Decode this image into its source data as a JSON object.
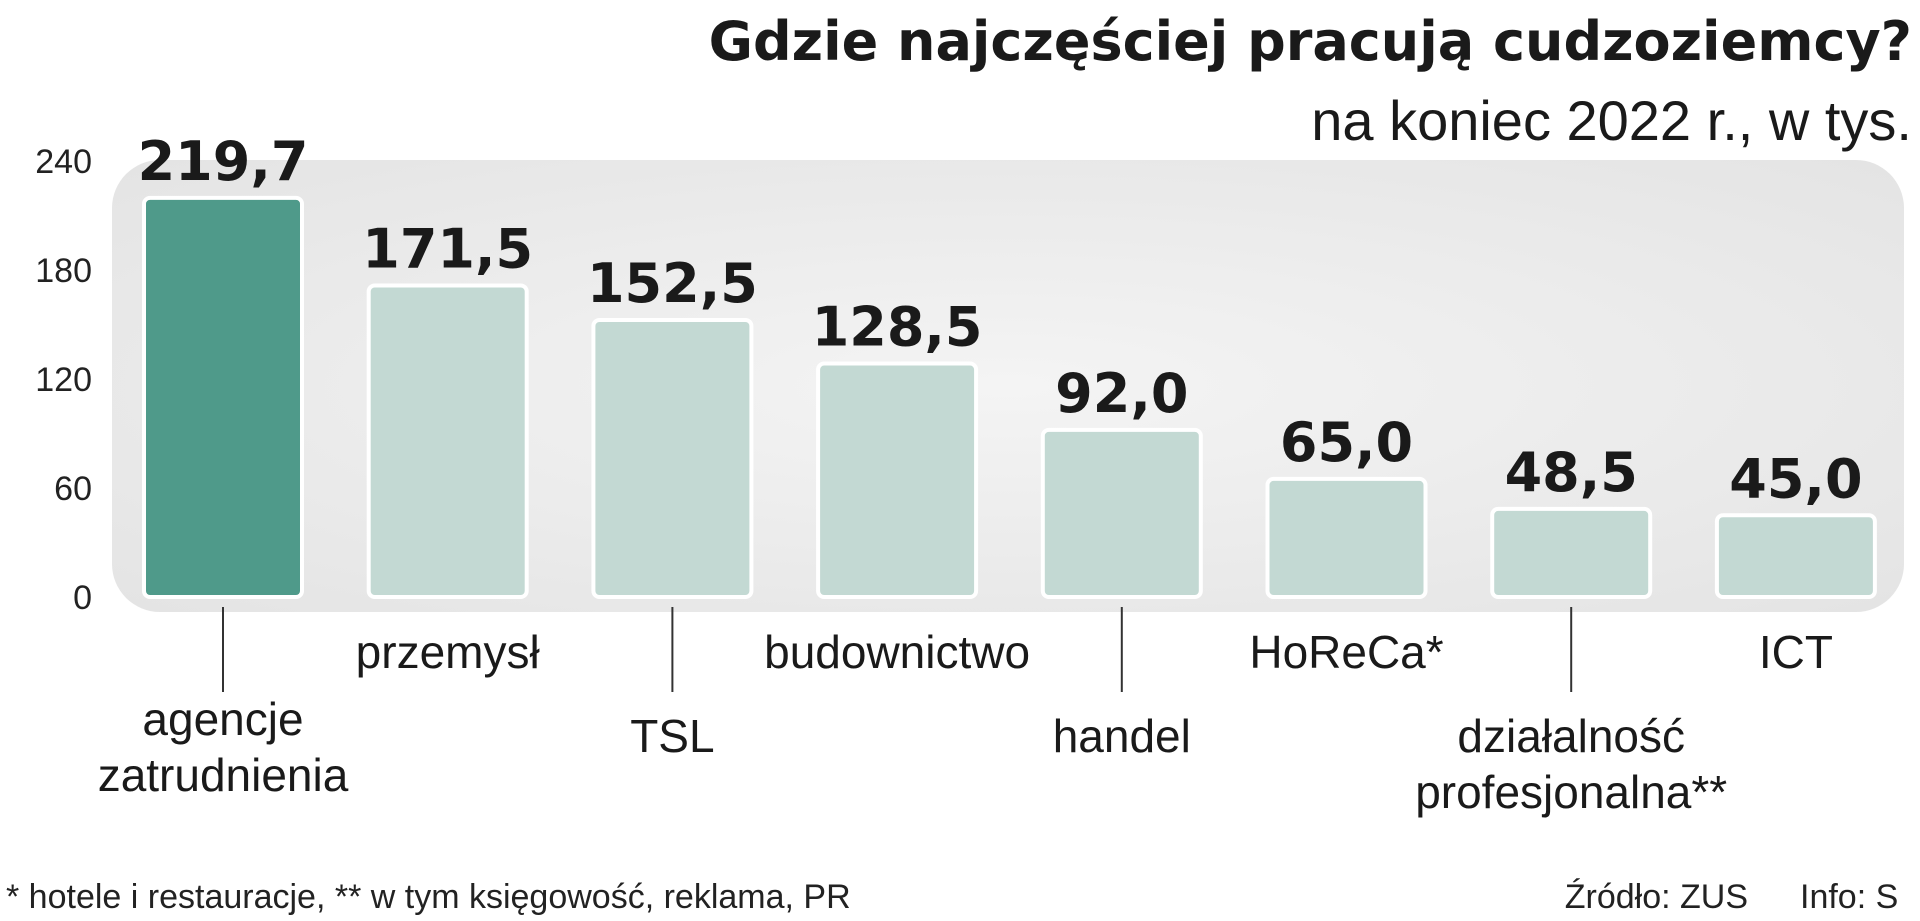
{
  "chart_data": {
    "type": "bar",
    "title": "Gdzie najczęściej pracują cudzoziemcy?",
    "subtitle": "na koniec 2022 r., w tys.",
    "categories": [
      [
        "agencje",
        "zatrudnienia"
      ],
      [
        "przemysł"
      ],
      [
        "TSL"
      ],
      [
        "budownictwo"
      ],
      [
        "handel"
      ],
      [
        "HoReCa*"
      ],
      [
        "działalność",
        "profesjonalna**"
      ],
      [
        "ICT"
      ]
    ],
    "values": [
      219.7,
      171.5,
      152.5,
      128.5,
      92.0,
      65.0,
      48.5,
      45.0
    ],
    "value_labels": [
      "219,7",
      "171,5",
      "152,5",
      "128,5",
      "92,0",
      "65,0",
      "48,5",
      "45,0"
    ],
    "yticks": [
      "0",
      "60",
      "120",
      "180",
      "240"
    ],
    "ytick_values": [
      0,
      60,
      120,
      180,
      240
    ],
    "ylim": [
      0,
      240
    ],
    "xlabel": "",
    "ylabel": "",
    "grid": false,
    "colors": {
      "highlight": "#4f9a8a",
      "bar": "#c3d9d3",
      "plot_background": "#ececec"
    }
  },
  "footnote": "* hotele i restauracje, ** w tym księgowość, reklama, PR",
  "source": "Źródło: ZUS",
  "info": "Info: S"
}
